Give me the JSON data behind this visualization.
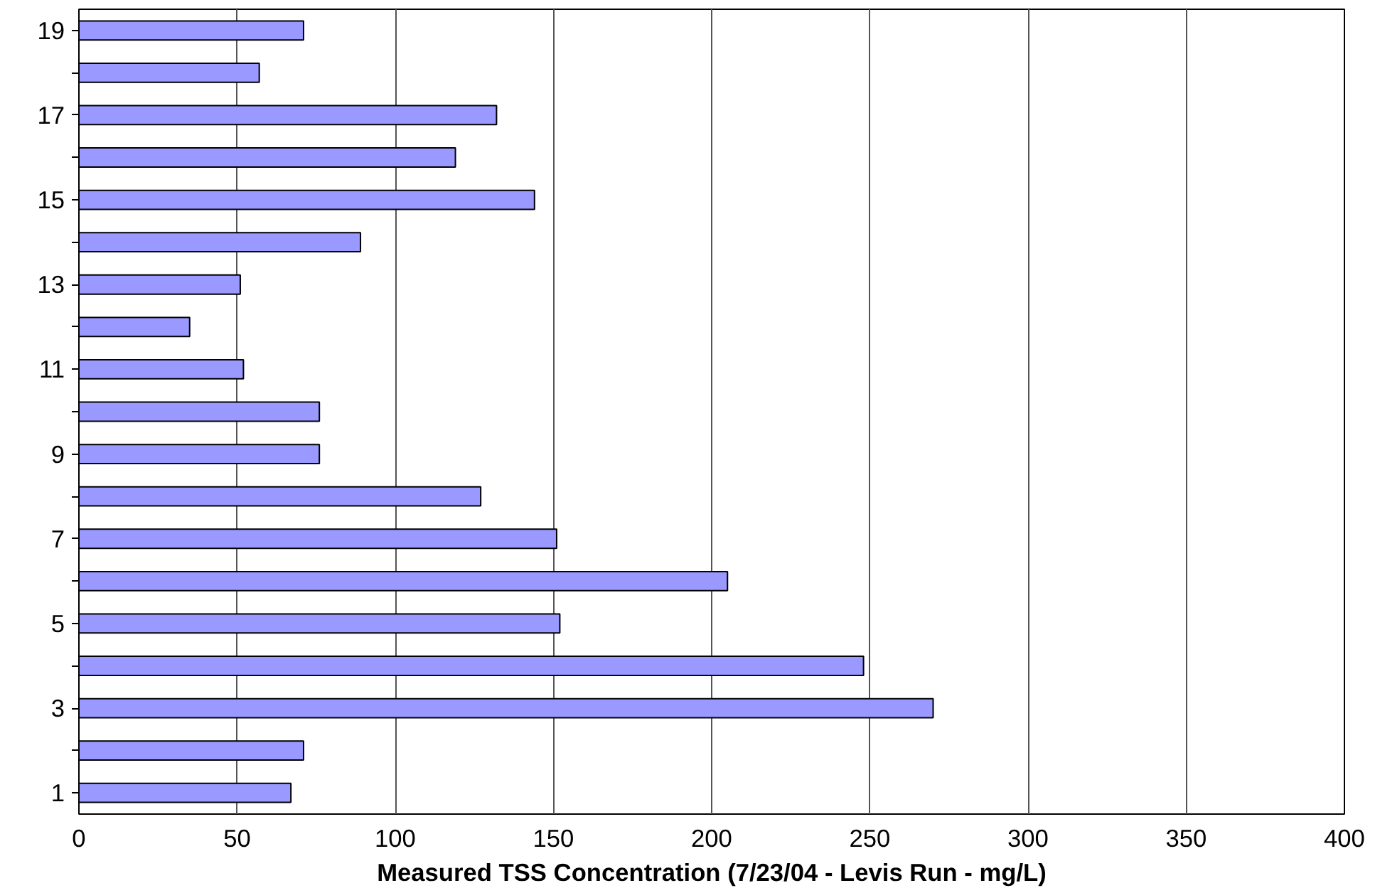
{
  "chart_data": {
    "type": "bar",
    "orientation": "horizontal",
    "xlabel": "Measured TSS Concentration (7/23/04 - Levis Run - mg/L)",
    "categories": [
      "19",
      null,
      "17",
      null,
      "15",
      null,
      "13",
      null,
      "11",
      null,
      "9",
      null,
      "7",
      null,
      "5",
      null,
      "3",
      null,
      "1"
    ],
    "values": [
      71,
      57,
      132,
      119,
      144,
      89,
      51,
      35,
      52,
      76,
      76,
      127,
      151,
      205,
      152,
      248,
      270,
      71,
      67
    ],
    "color": "#9999ff",
    "xlim": [
      0,
      400
    ],
    "xticks": [
      0,
      50,
      100,
      150,
      200,
      250,
      300,
      350,
      400
    ],
    "grid": "x"
  }
}
